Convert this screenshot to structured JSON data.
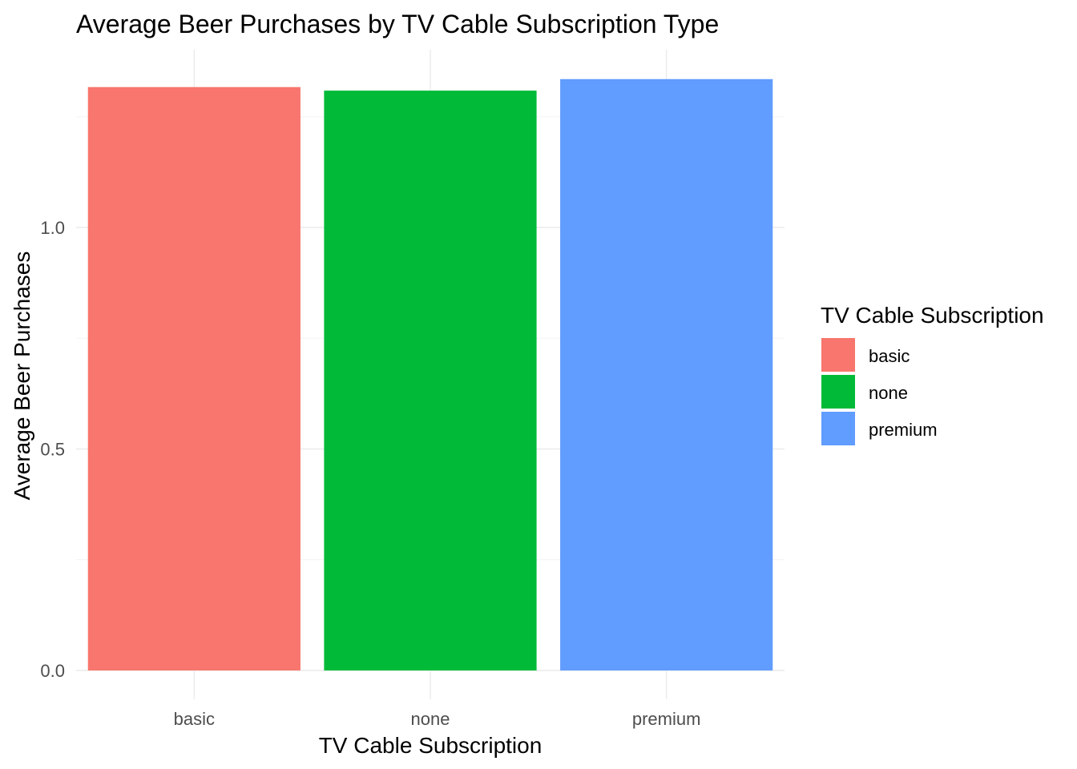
{
  "chart_data": {
    "type": "bar",
    "title": "Average Beer Purchases by TV Cable Subscription Type",
    "xlabel": "TV Cable Subscription",
    "ylabel": "Average Beer Purchases",
    "categories": [
      "basic",
      "none",
      "premium"
    ],
    "values": [
      1.317,
      1.309,
      1.335
    ],
    "colors": [
      "#F8766D",
      "#00BA38",
      "#619CFF"
    ],
    "ylim": [
      0,
      1.4
    ],
    "yticks": [
      0.0,
      0.5,
      1.0
    ],
    "ytick_labels": [
      "0.0",
      "0.5",
      "1.0"
    ],
    "grid": true,
    "legend": {
      "title": "TV Cable Subscription",
      "placement": "right",
      "entries": [
        "basic",
        "none",
        "premium"
      ]
    }
  }
}
